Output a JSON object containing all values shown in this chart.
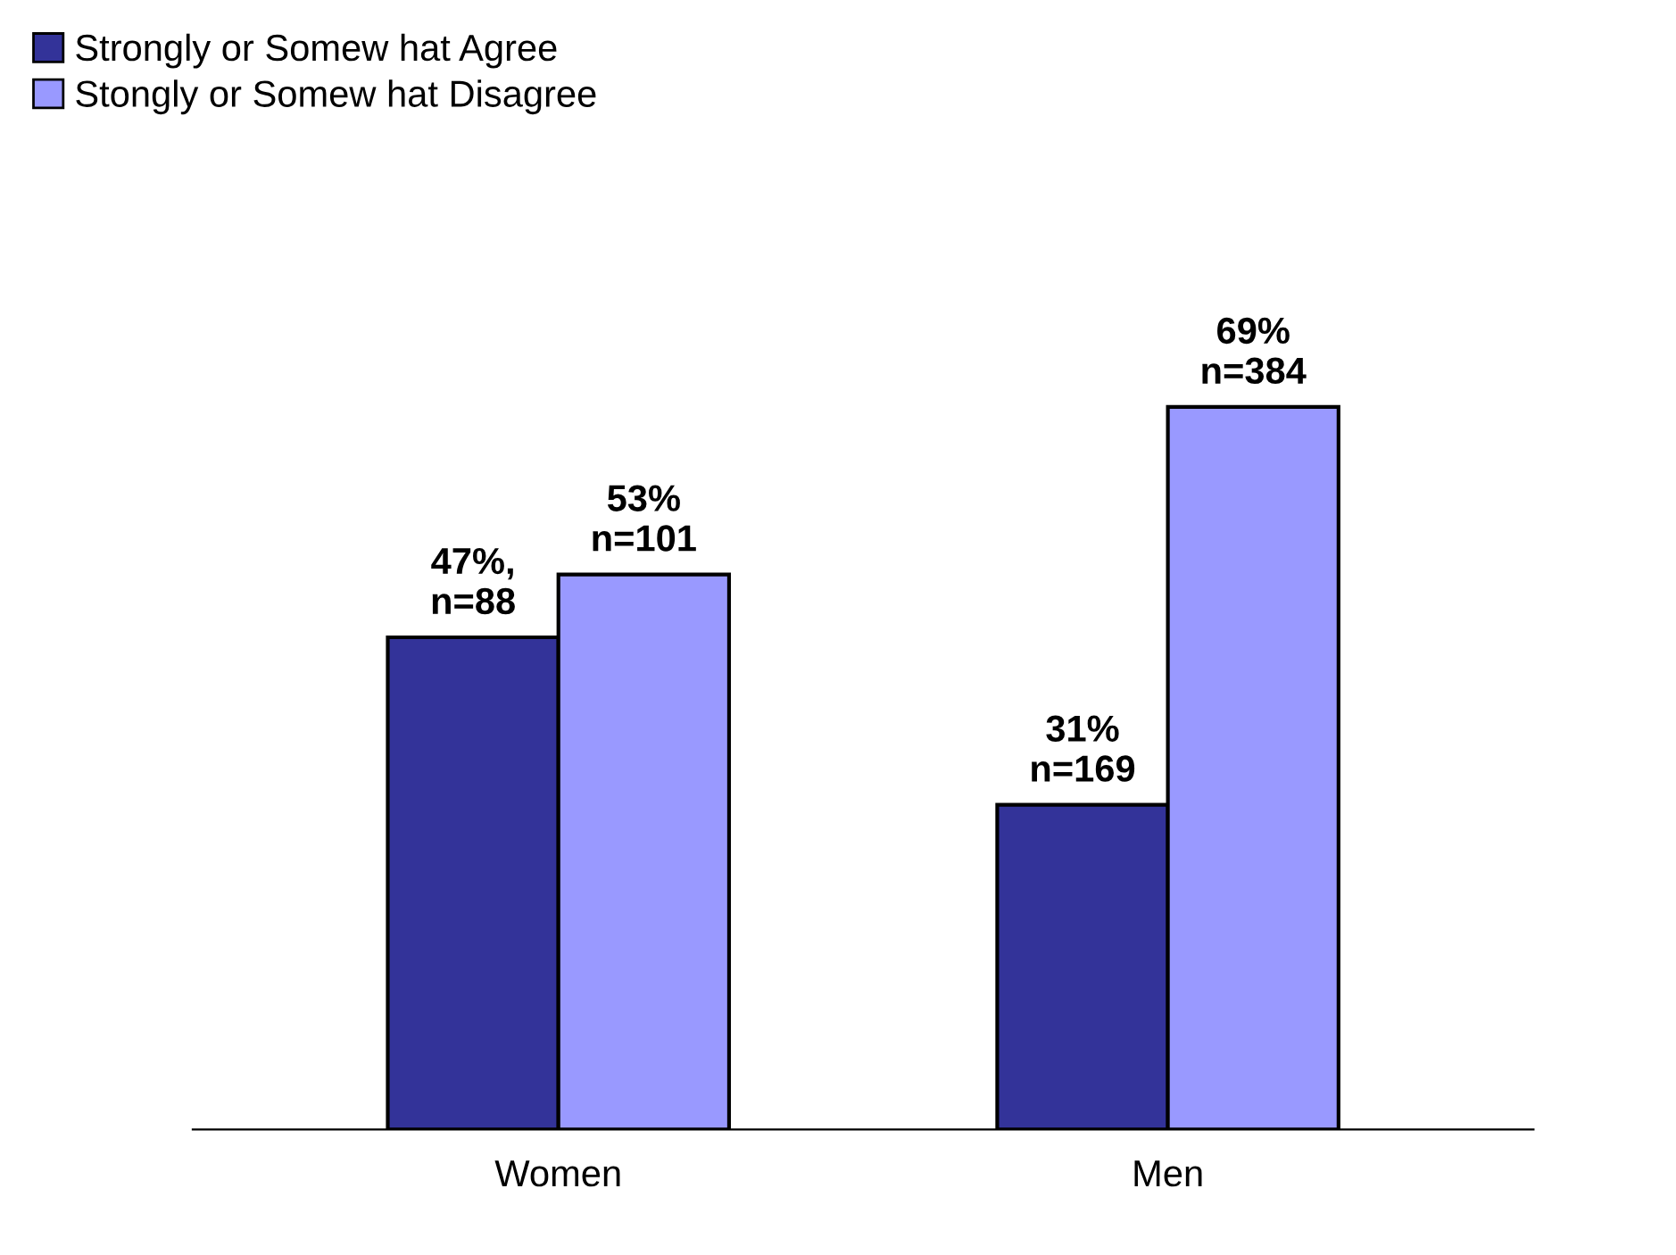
{
  "chart_data": {
    "type": "bar",
    "categories": [
      "Women",
      "Men"
    ],
    "series": [
      {
        "name": "Strongly or Somew hat Agree",
        "color": "#333399",
        "values": [
          47,
          31
        ],
        "value_labels": [
          "47%,\nn=88",
          "31%\nn=169"
        ]
      },
      {
        "name": "Stongly or Somew hat Disagree",
        "color": "#9999ff",
        "values": [
          53,
          69
        ],
        "value_labels": [
          "53%\nn=101",
          "69%\nn=384"
        ]
      }
    ],
    "legend": "top left",
    "grid": false
  }
}
